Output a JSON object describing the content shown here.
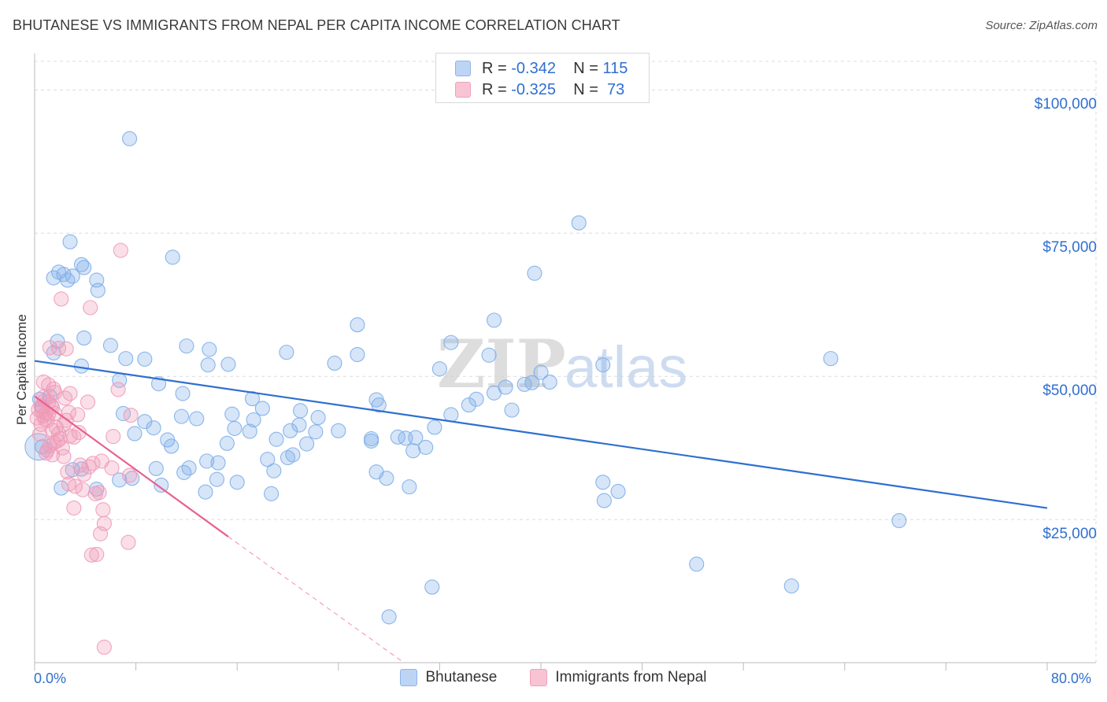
{
  "title": "BHUTANESE VS IMMIGRANTS FROM NEPAL PER CAPITA INCOME CORRELATION CHART",
  "source": "Source: ZipAtlas.com",
  "watermark": "ZIPatlas",
  "stats": {
    "row1": {
      "r_label": "R = ",
      "r_value": "-0.342",
      "n_label": "N = ",
      "n_value": "115"
    },
    "row2": {
      "r_label": "R = ",
      "r_value": "-0.325",
      "n_label": "N = ",
      "n_value": " 73"
    }
  },
  "chart_data": {
    "type": "scatter",
    "ylabel": "Per Capita Income",
    "xlim": [
      0,
      80
    ],
    "ylim": [
      0,
      105000
    ],
    "x_tick_labels": [
      "0.0%",
      "80.0%"
    ],
    "y_ticks": [
      {
        "value": 25000,
        "label": "$25,000"
      },
      {
        "value": 50000,
        "label": "$50,000"
      },
      {
        "value": 75000,
        "label": "$75,000"
      },
      {
        "value": 100000,
        "label": "$100,000"
      }
    ],
    "colors": {
      "blue": "#7eaee8",
      "blue_line": "#2e6fcf",
      "pink": "#f09ab8",
      "pink_line": "#e8608f"
    },
    "series": [
      {
        "name": "Bhutanese",
        "color": "blue",
        "trend": {
          "x0": 0,
          "y0": 52700,
          "x1": 80,
          "y1": 27000
        },
        "points": [
          [
            7.5,
            91500
          ],
          [
            43,
            76800
          ],
          [
            2.8,
            73500
          ],
          [
            10.9,
            70800
          ],
          [
            3.7,
            69500
          ],
          [
            3.9,
            69000
          ],
          [
            1.9,
            68200
          ],
          [
            2.3,
            67800
          ],
          [
            3.0,
            67500
          ],
          [
            1.5,
            67200
          ],
          [
            2.6,
            66800
          ],
          [
            4.9,
            66800
          ],
          [
            39.5,
            68000
          ],
          [
            5.0,
            65000
          ],
          [
            36.3,
            59800
          ],
          [
            25.5,
            59000
          ],
          [
            3.9,
            56700
          ],
          [
            1.8,
            56100
          ],
          [
            32.9,
            55900
          ],
          [
            6.0,
            55400
          ],
          [
            12.0,
            55300
          ],
          [
            13.8,
            54700
          ],
          [
            19.9,
            54200
          ],
          [
            1.5,
            54100
          ],
          [
            35.9,
            53700
          ],
          [
            25.5,
            53800
          ],
          [
            7.2,
            53100
          ],
          [
            8.7,
            53000
          ],
          [
            62.9,
            53100
          ],
          [
            23.7,
            52300
          ],
          [
            15.3,
            52100
          ],
          [
            13.7,
            52000
          ],
          [
            44.9,
            52000
          ],
          [
            3.7,
            51800
          ],
          [
            32.0,
            51300
          ],
          [
            40.0,
            50700
          ],
          [
            6.7,
            49300
          ],
          [
            9.8,
            48700
          ],
          [
            37.2,
            48100
          ],
          [
            38.7,
            48600
          ],
          [
            39.3,
            48900
          ],
          [
            40.7,
            49000
          ],
          [
            36.3,
            47100
          ],
          [
            11.7,
            47000
          ],
          [
            1.2,
            46500
          ],
          [
            17.2,
            46100
          ],
          [
            27.0,
            45900
          ],
          [
            34.9,
            46000
          ],
          [
            0.6,
            44700
          ],
          [
            27.2,
            45000
          ],
          [
            34.3,
            45000
          ],
          [
            18.0,
            44400
          ],
          [
            21.0,
            44000
          ],
          [
            7.0,
            43500
          ],
          [
            32.9,
            43300
          ],
          [
            15.6,
            43400
          ],
          [
            37.7,
            44100
          ],
          [
            11.6,
            43000
          ],
          [
            12.8,
            42600
          ],
          [
            17.3,
            42400
          ],
          [
            22.4,
            42800
          ],
          [
            8.7,
            42100
          ],
          [
            9.4,
            41000
          ],
          [
            20.9,
            41500
          ],
          [
            24.0,
            40500
          ],
          [
            22.2,
            40300
          ],
          [
            31.6,
            41100
          ],
          [
            20.2,
            40500
          ],
          [
            15.8,
            40900
          ],
          [
            17.0,
            40400
          ],
          [
            28.7,
            39400
          ],
          [
            29.3,
            39200
          ],
          [
            30.1,
            39300
          ],
          [
            7.9,
            40000
          ],
          [
            26.6,
            39100
          ],
          [
            10.5,
            38900
          ],
          [
            19.1,
            39000
          ],
          [
            15.2,
            38300
          ],
          [
            26.6,
            38700
          ],
          [
            21.5,
            38200
          ],
          [
            10.8,
            37800
          ],
          [
            30.9,
            37600
          ],
          [
            29.9,
            37000
          ],
          [
            20.4,
            36300
          ],
          [
            20.0,
            35800
          ],
          [
            18.4,
            35500
          ],
          [
            13.6,
            35200
          ],
          [
            14.5,
            34900
          ],
          [
            18.9,
            33500
          ],
          [
            27.0,
            33300
          ],
          [
            9.6,
            33900
          ],
          [
            12.2,
            34000
          ],
          [
            3.7,
            33800
          ],
          [
            3.0,
            33700
          ],
          [
            11.8,
            33200
          ],
          [
            7.7,
            32200
          ],
          [
            14.4,
            32000
          ],
          [
            27.8,
            32200
          ],
          [
            6.7,
            31900
          ],
          [
            16.0,
            31500
          ],
          [
            10.0,
            31000
          ],
          [
            29.6,
            30700
          ],
          [
            2.1,
            30500
          ],
          [
            4.9,
            30300
          ],
          [
            13.5,
            29800
          ],
          [
            18.7,
            29500
          ],
          [
            45.0,
            28300
          ],
          [
            44.9,
            31500
          ],
          [
            46.1,
            29900
          ],
          [
            68.3,
            24800
          ],
          [
            52.3,
            17200
          ],
          [
            59.8,
            13400
          ],
          [
            31.4,
            13200
          ],
          [
            28.0,
            8000
          ],
          [
            0.6,
            37700
          ],
          [
            0.4,
            46000
          ]
        ]
      },
      {
        "name": "Immigrants from Nepal",
        "color": "pink",
        "trend": {
          "x0": 0,
          "y0": 46500,
          "x1": 15.3,
          "y1": 22000,
          "dash_x1": 38,
          "dash_y1": -14000
        },
        "points": [
          [
            6.8,
            72000
          ],
          [
            2.1,
            63500
          ],
          [
            4.4,
            62000
          ],
          [
            1.2,
            55000
          ],
          [
            1.9,
            54900
          ],
          [
            2.5,
            54800
          ],
          [
            0.7,
            49000
          ],
          [
            1.1,
            48500
          ],
          [
            1.5,
            47800
          ],
          [
            1.6,
            47200
          ],
          [
            2.8,
            47000
          ],
          [
            0.8,
            45800
          ],
          [
            1.1,
            45500
          ],
          [
            1.3,
            45000
          ],
          [
            0.5,
            44800
          ],
          [
            2.4,
            46200
          ],
          [
            0.7,
            46400
          ],
          [
            1.4,
            44600
          ],
          [
            4.2,
            45500
          ],
          [
            6.6,
            47700
          ],
          [
            0.3,
            44200
          ],
          [
            0.6,
            44000
          ],
          [
            0.9,
            43600
          ],
          [
            1.1,
            43400
          ],
          [
            0.7,
            43100
          ],
          [
            1.6,
            43500
          ],
          [
            2.7,
            43700
          ],
          [
            2.5,
            42300
          ],
          [
            3.4,
            43300
          ],
          [
            0.2,
            42700
          ],
          [
            0.8,
            42500
          ],
          [
            1.0,
            42300
          ],
          [
            2.3,
            41500
          ],
          [
            1.4,
            40600
          ],
          [
            1.9,
            40000
          ],
          [
            2.8,
            39600
          ],
          [
            3.1,
            39400
          ],
          [
            2.0,
            39100
          ],
          [
            1.8,
            38700
          ],
          [
            1.5,
            38400
          ],
          [
            1.2,
            37900
          ],
          [
            1.0,
            37100
          ],
          [
            0.9,
            36600
          ],
          [
            1.4,
            36300
          ],
          [
            2.3,
            36000
          ],
          [
            6.2,
            39500
          ],
          [
            7.6,
            43200
          ],
          [
            4.6,
            34800
          ],
          [
            5.3,
            35200
          ],
          [
            3.6,
            34500
          ],
          [
            4.3,
            34200
          ],
          [
            6.1,
            34000
          ],
          [
            2.6,
            33300
          ],
          [
            3.9,
            32900
          ],
          [
            7.5,
            32700
          ],
          [
            2.7,
            31200
          ],
          [
            3.2,
            30800
          ],
          [
            3.8,
            30200
          ],
          [
            5.1,
            29700
          ],
          [
            4.8,
            29500
          ],
          [
            3.1,
            27000
          ],
          [
            5.4,
            26700
          ],
          [
            5.5,
            24300
          ],
          [
            5.2,
            22500
          ],
          [
            7.4,
            21000
          ],
          [
            4.9,
            18900
          ],
          [
            4.5,
            18800
          ],
          [
            5.5,
            2700
          ],
          [
            0.5,
            41600
          ],
          [
            1.7,
            41100
          ],
          [
            0.4,
            39900
          ],
          [
            2.2,
            37500
          ],
          [
            3.5,
            40200
          ]
        ]
      }
    ]
  },
  "legend": [
    "Bhutanese",
    "Immigrants from Nepal"
  ]
}
